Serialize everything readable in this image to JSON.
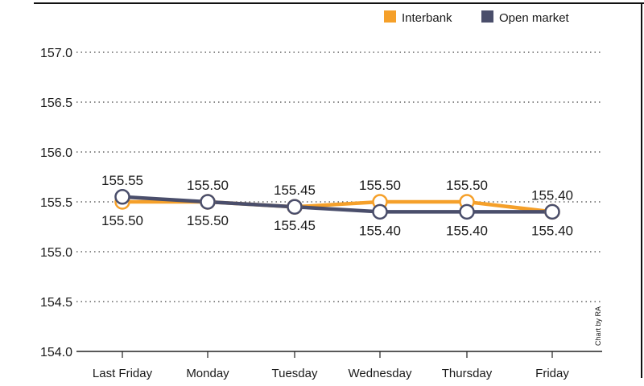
{
  "chart_data": {
    "type": "line",
    "categories": [
      "Last Friday",
      "Monday",
      "Tuesday",
      "Wednesday",
      "Thursday",
      "Friday"
    ],
    "series": [
      {
        "name": "Interbank",
        "color": "#f5a02a",
        "values": [
          155.5,
          155.5,
          155.45,
          155.5,
          155.5,
          155.4
        ]
      },
      {
        "name": "Open market",
        "color": "#4a4e6b",
        "values": [
          155.55,
          155.5,
          155.45,
          155.4,
          155.4,
          155.4
        ]
      }
    ],
    "ylim": [
      154.0,
      157.0
    ],
    "yticks": [
      "154.0",
      "154.5",
      "155.0",
      "155.5",
      "156.0",
      "156.5",
      "157.0"
    ],
    "data_labels_above": [
      "155.55",
      "155.50",
      "155.45",
      "155.50",
      "155.50",
      "155.40"
    ],
    "data_labels_below": [
      "155.50",
      "155.50",
      "155.45",
      "155.40",
      "155.40",
      "155.40"
    ],
    "grid": "dotted horizontal",
    "legend_position": "top-right",
    "credit": "Chart by RA"
  }
}
